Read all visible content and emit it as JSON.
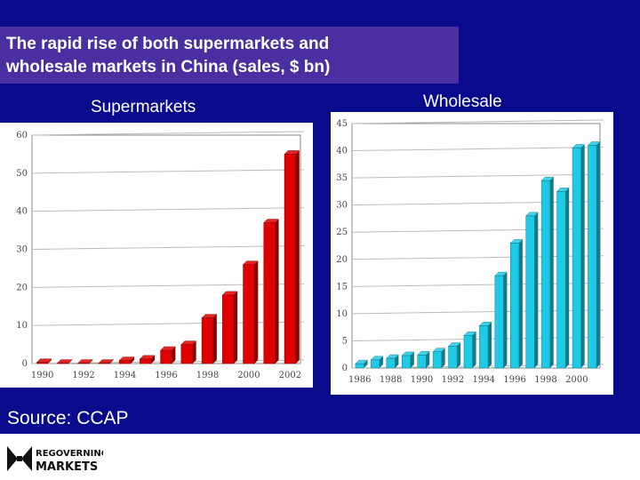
{
  "header": {
    "title_line1": "The rapid rise of both supermarkets and",
    "title_line2": "wholesale markets in China (sales, $ bn)"
  },
  "source": "Source: CCAP",
  "logo": {
    "line1": "REGOVERNING",
    "line2": "MARKETS"
  },
  "colors": {
    "background": "#0a0a8c",
    "title_box": "#4a2fa0",
    "supermarket_bar": "#e10000",
    "wholesale_bar": "#1ecbe6"
  },
  "chart_data": [
    {
      "type": "bar",
      "title": "Supermarkets",
      "categories": [
        "1990",
        "1991",
        "1992",
        "1993",
        "1994",
        "1995",
        "1996",
        "1997",
        "1998",
        "1999",
        "2000",
        "2001",
        "2002"
      ],
      "values": [
        0.3,
        0.1,
        0.1,
        0.1,
        0.8,
        1.2,
        3.5,
        5,
        12,
        18,
        26,
        37,
        55
      ],
      "xticks": [
        "1990",
        "1992",
        "1994",
        "1996",
        "1998",
        "2000",
        "2002"
      ],
      "yticks": [
        "0",
        "10",
        "20",
        "30",
        "40",
        "50",
        "60"
      ],
      "ylim": [
        0,
        60
      ],
      "grid": true
    },
    {
      "type": "bar",
      "title": "Wholesale",
      "categories": [
        "1986",
        "1987",
        "1988",
        "1989",
        "1990",
        "1991",
        "1992",
        "1993",
        "1994",
        "1995",
        "1996",
        "1997",
        "1998",
        "1999",
        "2000",
        "2001"
      ],
      "values": [
        0.8,
        1.5,
        1.8,
        2.3,
        2.4,
        3,
        4,
        6,
        7.8,
        17,
        23,
        28,
        34.5,
        32.5,
        40.5,
        41
      ],
      "xticks": [
        "1986",
        "1988",
        "1990",
        "1992",
        "1994",
        "1996",
        "1998",
        "2000"
      ],
      "yticks": [
        "0",
        "5",
        "10",
        "15",
        "20",
        "25",
        "30",
        "35",
        "40",
        "45"
      ],
      "ylim": [
        0,
        45
      ],
      "grid": true
    }
  ]
}
